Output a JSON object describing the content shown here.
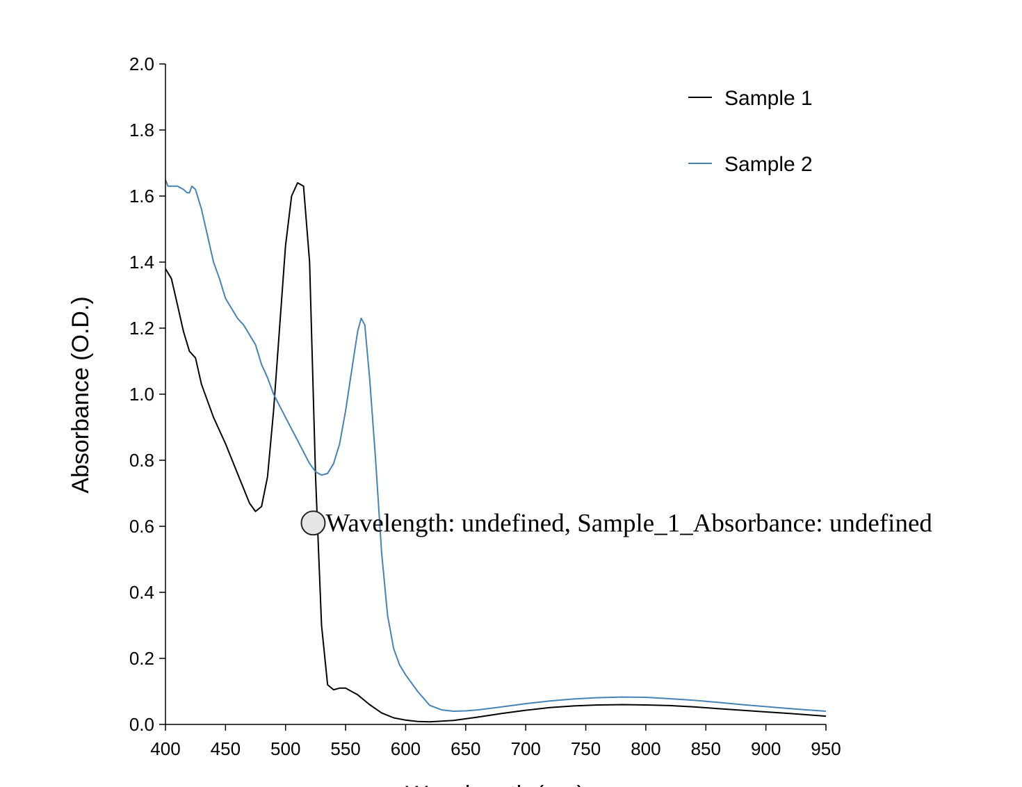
{
  "chart_data": {
    "type": "line",
    "xlabel": "Wavelength (nm)",
    "ylabel": "Absorbance (O.D.)",
    "xlim": [
      400,
      950
    ],
    "ylim": [
      0,
      2.0
    ],
    "x_ticks": [
      "400",
      "450",
      "500",
      "550",
      "600",
      "650",
      "700",
      "750",
      "800",
      "850",
      "900",
      "950"
    ],
    "y_ticks": [
      "0.0",
      "0.2",
      "0.4",
      "0.6",
      "0.8",
      "1.0",
      "1.2",
      "1.4",
      "1.6",
      "1.8",
      "2.0"
    ],
    "grid": false,
    "legend_position": "top-right",
    "series": [
      {
        "name": "Sample 1",
        "color": "#000000",
        "points": [
          [
            400,
            1.38
          ],
          [
            405,
            1.35
          ],
          [
            410,
            1.27
          ],
          [
            415,
            1.19
          ],
          [
            420,
            1.13
          ],
          [
            425,
            1.11
          ],
          [
            430,
            1.03
          ],
          [
            440,
            0.93
          ],
          [
            450,
            0.85
          ],
          [
            460,
            0.76
          ],
          [
            470,
            0.67
          ],
          [
            475,
            0.645
          ],
          [
            480,
            0.66
          ],
          [
            485,
            0.75
          ],
          [
            490,
            0.95
          ],
          [
            495,
            1.2
          ],
          [
            500,
            1.45
          ],
          [
            505,
            1.6
          ],
          [
            510,
            1.64
          ],
          [
            515,
            1.63
          ],
          [
            520,
            1.4
          ],
          [
            525,
            0.75
          ],
          [
            530,
            0.3
          ],
          [
            535,
            0.12
          ],
          [
            540,
            0.105
          ],
          [
            545,
            0.11
          ],
          [
            550,
            0.11
          ],
          [
            560,
            0.09
          ],
          [
            570,
            0.06
          ],
          [
            580,
            0.035
          ],
          [
            590,
            0.02
          ],
          [
            600,
            0.013
          ],
          [
            610,
            0.009
          ],
          [
            620,
            0.008
          ],
          [
            640,
            0.012
          ],
          [
            660,
            0.022
          ],
          [
            680,
            0.033
          ],
          [
            700,
            0.043
          ],
          [
            720,
            0.051
          ],
          [
            740,
            0.056
          ],
          [
            760,
            0.059
          ],
          [
            780,
            0.06
          ],
          [
            800,
            0.059
          ],
          [
            820,
            0.057
          ],
          [
            840,
            0.053
          ],
          [
            860,
            0.048
          ],
          [
            880,
            0.043
          ],
          [
            900,
            0.038
          ],
          [
            920,
            0.033
          ],
          [
            950,
            0.025
          ]
        ]
      },
      {
        "name": "Sample 2",
        "color": "#4682b4",
        "points": [
          [
            400,
            1.65
          ],
          [
            402,
            1.63
          ],
          [
            410,
            1.63
          ],
          [
            415,
            1.62
          ],
          [
            418,
            1.61
          ],
          [
            420,
            1.61
          ],
          [
            422,
            1.63
          ],
          [
            425,
            1.62
          ],
          [
            430,
            1.56
          ],
          [
            435,
            1.48
          ],
          [
            440,
            1.4
          ],
          [
            445,
            1.35
          ],
          [
            450,
            1.29
          ],
          [
            455,
            1.26
          ],
          [
            460,
            1.23
          ],
          [
            465,
            1.21
          ],
          [
            470,
            1.18
          ],
          [
            475,
            1.15
          ],
          [
            480,
            1.09
          ],
          [
            485,
            1.05
          ],
          [
            490,
            1.0
          ],
          [
            500,
            0.93
          ],
          [
            510,
            0.86
          ],
          [
            520,
            0.79
          ],
          [
            525,
            0.765
          ],
          [
            530,
            0.755
          ],
          [
            535,
            0.76
          ],
          [
            540,
            0.79
          ],
          [
            545,
            0.85
          ],
          [
            550,
            0.95
          ],
          [
            555,
            1.07
          ],
          [
            560,
            1.19
          ],
          [
            563,
            1.23
          ],
          [
            566,
            1.21
          ],
          [
            570,
            1.05
          ],
          [
            575,
            0.8
          ],
          [
            580,
            0.52
          ],
          [
            585,
            0.33
          ],
          [
            590,
            0.23
          ],
          [
            595,
            0.18
          ],
          [
            600,
            0.15
          ],
          [
            610,
            0.1
          ],
          [
            620,
            0.058
          ],
          [
            630,
            0.044
          ],
          [
            640,
            0.04
          ],
          [
            650,
            0.041
          ],
          [
            660,
            0.044
          ],
          [
            680,
            0.053
          ],
          [
            700,
            0.063
          ],
          [
            720,
            0.071
          ],
          [
            740,
            0.077
          ],
          [
            760,
            0.081
          ],
          [
            780,
            0.083
          ],
          [
            800,
            0.082
          ],
          [
            820,
            0.078
          ],
          [
            840,
            0.073
          ],
          [
            860,
            0.067
          ],
          [
            880,
            0.06
          ],
          [
            900,
            0.054
          ],
          [
            920,
            0.048
          ],
          [
            950,
            0.04
          ]
        ]
      }
    ],
    "tooltip": {
      "text": "Wavelength: undefined, Sample_1_Absorbance: undefined",
      "x": 523,
      "y": 0.61
    }
  }
}
